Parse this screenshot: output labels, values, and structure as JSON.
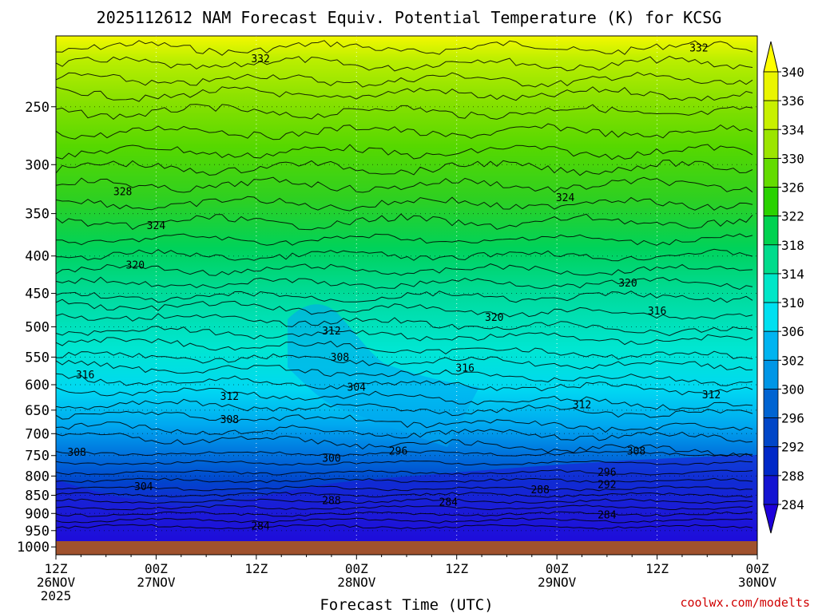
{
  "chart_data": {
    "type": "heatmap",
    "title": "2025112612 NAM Forecast Equiv. Potential Temperature (K) for KCSG",
    "xlabel": "Forecast Time (UTC)",
    "ylabel": "",
    "y_ticks": [
      "250",
      "300",
      "350",
      "400",
      "450",
      "500",
      "550",
      "600",
      "650",
      "700",
      "750",
      "800",
      "850",
      "900",
      "950",
      "1000"
    ],
    "y_tick_values": [
      250,
      300,
      350,
      400,
      450,
      500,
      550,
      600,
      650,
      700,
      750,
      800,
      850,
      900,
      950,
      1000
    ],
    "y_scale": "log",
    "ylim": [
      1025,
      200
    ],
    "x_ticks": [
      {
        "hour": 0,
        "line1": "12Z",
        "line2": "26NOV",
        "line3": "2025"
      },
      {
        "hour": 12,
        "line1": "00Z",
        "line2": "27NOV",
        "line3": ""
      },
      {
        "hour": 24,
        "line1": "12Z",
        "line2": "",
        "line3": ""
      },
      {
        "hour": 36,
        "line1": "00Z",
        "line2": "28NOV",
        "line3": ""
      },
      {
        "hour": 48,
        "line1": "12Z",
        "line2": "",
        "line3": ""
      },
      {
        "hour": 60,
        "line1": "00Z",
        "line2": "29NOV",
        "line3": ""
      },
      {
        "hour": 72,
        "line1": "12Z",
        "line2": "",
        "line3": ""
      },
      {
        "hour": 84,
        "line1": "00Z",
        "line2": "30NOV",
        "line3": ""
      }
    ],
    "xlim": [
      0,
      84
    ],
    "grid": true,
    "colorbar": {
      "labels": [
        "340",
        "336",
        "334",
        "330",
        "326",
        "322",
        "318",
        "314",
        "310",
        "306",
        "302",
        "300",
        "296",
        "292",
        "288",
        "284"
      ],
      "colors": [
        "#ffff00",
        "#eaf500",
        "#c8f000",
        "#9ce500",
        "#64dc00",
        "#2ad200",
        "#00d250",
        "#00dc8c",
        "#00e6c8",
        "#00e0f0",
        "#00b4f0",
        "#0096e6",
        "#0064d2",
        "#0046c8",
        "#0028c8",
        "#1414d2",
        "#1e00dc"
      ]
    },
    "contour_labels": [
      {
        "text": "332",
        "hour": 24.5,
        "p": 215
      },
      {
        "text": "332",
        "hour": 77.0,
        "p": 208
      },
      {
        "text": "328",
        "hour": 8.0,
        "p": 327
      },
      {
        "text": "324",
        "hour": 12.0,
        "p": 364
      },
      {
        "text": "324",
        "hour": 61.0,
        "p": 333
      },
      {
        "text": "320",
        "hour": 9.5,
        "p": 412
      },
      {
        "text": "320",
        "hour": 68.5,
        "p": 436
      },
      {
        "text": "320",
        "hour": 52.5,
        "p": 486
      },
      {
        "text": "316",
        "hour": 3.5,
        "p": 582
      },
      {
        "text": "316",
        "hour": 49.0,
        "p": 570
      },
      {
        "text": "316",
        "hour": 72.0,
        "p": 476
      },
      {
        "text": "312",
        "hour": 33.0,
        "p": 507
      },
      {
        "text": "312",
        "hour": 20.8,
        "p": 623
      },
      {
        "text": "312",
        "hour": 63.0,
        "p": 640
      },
      {
        "text": "312",
        "hour": 78.5,
        "p": 620
      },
      {
        "text": "308",
        "hour": 34.0,
        "p": 551
      },
      {
        "text": "308",
        "hour": 20.8,
        "p": 670
      },
      {
        "text": "308",
        "hour": 2.5,
        "p": 743
      },
      {
        "text": "308",
        "hour": 69.5,
        "p": 740
      },
      {
        "text": "304",
        "hour": 36.0,
        "p": 605
      },
      {
        "text": "304",
        "hour": 10.5,
        "p": 828
      },
      {
        "text": "300",
        "hour": 33.0,
        "p": 757
      },
      {
        "text": "296",
        "hour": 41.0,
        "p": 740
      },
      {
        "text": "296",
        "hour": 66.0,
        "p": 791
      },
      {
        "text": "292",
        "hour": 66.0,
        "p": 823
      },
      {
        "text": "288",
        "hour": 33.0,
        "p": 865
      },
      {
        "text": "288",
        "hour": 58.0,
        "p": 836
      },
      {
        "text": "284",
        "hour": 47.0,
        "p": 869
      },
      {
        "text": "284",
        "hour": 66.0,
        "p": 905
      },
      {
        "text": "284",
        "hour": 24.5,
        "p": 937
      }
    ]
  },
  "credit": "coolwx.com/modelts"
}
